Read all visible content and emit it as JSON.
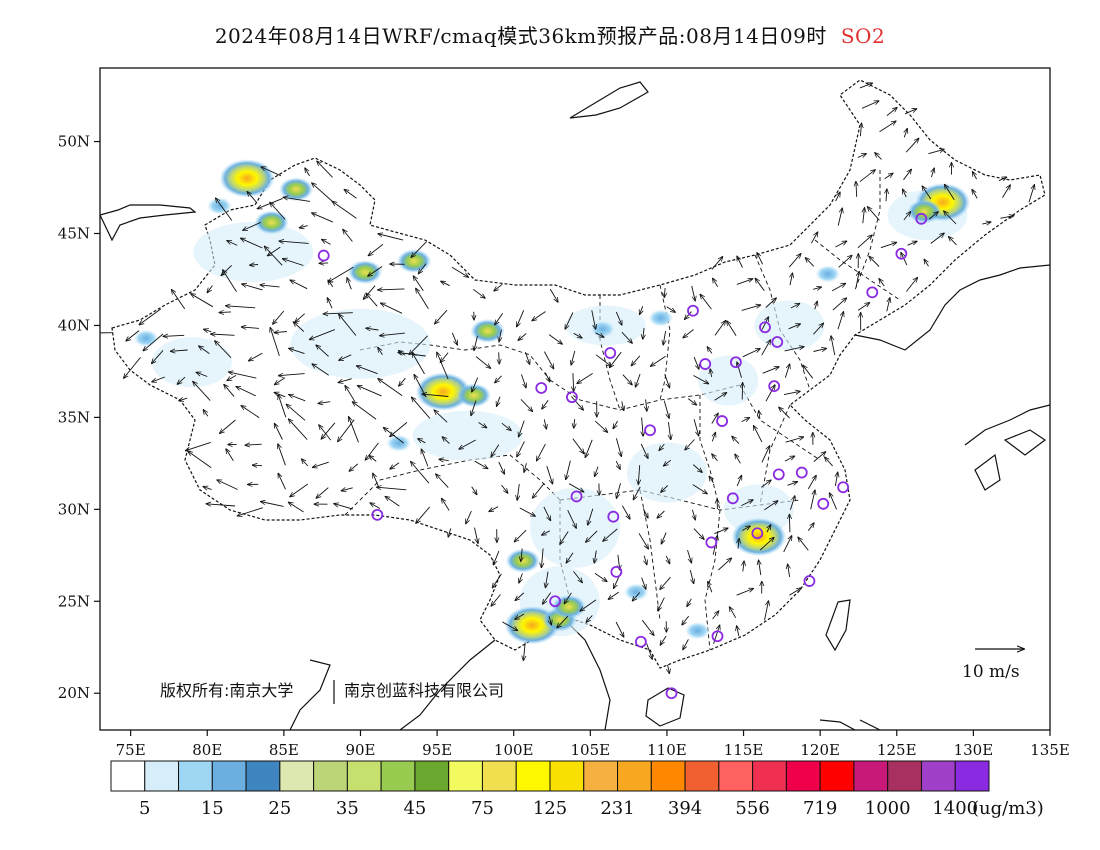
{
  "title": {
    "text": "2024年08月14日WRF/cmaq模式36km预报产品:08月14日09时",
    "pollutant": "SO2"
  },
  "axes": {
    "x_ticks": [
      "75E",
      "80E",
      "85E",
      "90E",
      "95E",
      "100E",
      "105E",
      "110E",
      "115E",
      "120E",
      "125E",
      "130E",
      "135E"
    ],
    "y_ticks": [
      "50N",
      "45N",
      "40N",
      "35N",
      "30N",
      "25N",
      "20N"
    ],
    "lon_range": [
      73,
      135
    ],
    "lat_range": [
      18,
      54
    ]
  },
  "legend": {
    "colors": [
      "#ffffff",
      "#d6eefa",
      "#9fd6f4",
      "#6aafe0",
      "#3f86c0",
      "#dde8b0",
      "#bcd578",
      "#c6e070",
      "#98cc50",
      "#6aa830",
      "#f2fa60",
      "#f0e050",
      "#fff700",
      "#f8e000",
      "#f5b040",
      "#f8a820",
      "#ff8800",
      "#f06030",
      "#ff6060",
      "#f03050",
      "#f0004a",
      "#ff0000",
      "#c81878",
      "#a83060",
      "#a040c8",
      "#8a2be2"
    ],
    "labels": [
      "5",
      "15",
      "25",
      "35",
      "45",
      "75",
      "125",
      "231",
      "394",
      "556",
      "719",
      "1000",
      "1400"
    ],
    "unit": "(ug/m3)"
  },
  "wind_reference": {
    "label": "10 m/s"
  },
  "copyright": {
    "part1": "版权所有:南京大学",
    "part2": "南京创蓝科技有限公司"
  },
  "stations": [
    [
      87.6,
      43.8
    ],
    [
      91.1,
      29.7
    ],
    [
      101.8,
      36.6
    ],
    [
      103.8,
      36.1
    ],
    [
      106.3,
      38.5
    ],
    [
      111.7,
      40.8
    ],
    [
      112.5,
      37.9
    ],
    [
      114.5,
      38.0
    ],
    [
      116.4,
      39.9
    ],
    [
      117.2,
      39.1
    ],
    [
      117.0,
      36.7
    ],
    [
      113.6,
      34.8
    ],
    [
      108.9,
      34.3
    ],
    [
      104.1,
      30.7
    ],
    [
      106.5,
      29.6
    ],
    [
      106.7,
      26.6
    ],
    [
      102.7,
      25.0
    ],
    [
      108.3,
      22.8
    ],
    [
      113.3,
      23.1
    ],
    [
      110.3,
      20.0
    ],
    [
      114.3,
      30.6
    ],
    [
      112.9,
      28.2
    ],
    [
      115.9,
      28.7
    ],
    [
      117.3,
      31.9
    ],
    [
      118.8,
      32.0
    ],
    [
      120.2,
      30.3
    ],
    [
      121.5,
      31.2
    ],
    [
      119.3,
      26.1
    ],
    [
      126.6,
      45.8
    ],
    [
      125.3,
      43.9
    ],
    [
      123.4,
      41.8
    ]
  ],
  "emission_hotspots": [
    {
      "lon": 95.4,
      "lat": 36.4,
      "level": "high"
    },
    {
      "lon": 97.4,
      "lat": 36.2,
      "level": "mid"
    },
    {
      "lon": 98.3,
      "lat": 39.7,
      "level": "mid"
    },
    {
      "lon": 84.2,
      "lat": 45.6,
      "level": "mid"
    },
    {
      "lon": 82.6,
      "lat": 48.0,
      "level": "high"
    },
    {
      "lon": 85.8,
      "lat": 47.4,
      "level": "mid"
    },
    {
      "lon": 90.3,
      "lat": 42.9,
      "level": "mid"
    },
    {
      "lon": 93.5,
      "lat": 43.5,
      "level": "mid"
    },
    {
      "lon": 76.0,
      "lat": 39.3,
      "level": "low"
    },
    {
      "lon": 80.8,
      "lat": 46.5,
      "level": "low"
    },
    {
      "lon": 101.2,
      "lat": 23.7,
      "level": "high"
    },
    {
      "lon": 103.0,
      "lat": 24.0,
      "level": "mid"
    },
    {
      "lon": 100.6,
      "lat": 27.2,
      "level": "mid"
    },
    {
      "lon": 103.6,
      "lat": 24.7,
      "level": "mid"
    },
    {
      "lon": 116.0,
      "lat": 28.5,
      "level": "high"
    },
    {
      "lon": 128.0,
      "lat": 46.7,
      "level": "high"
    },
    {
      "lon": 126.8,
      "lat": 46.2,
      "level": "mid"
    },
    {
      "lon": 120.5,
      "lat": 42.8,
      "level": "low"
    },
    {
      "lon": 92.5,
      "lat": 33.6,
      "level": "low"
    },
    {
      "lon": 108.0,
      "lat": 25.5,
      "level": "low"
    },
    {
      "lon": 112.0,
      "lat": 23.4,
      "level": "low"
    },
    {
      "lon": 109.6,
      "lat": 40.4,
      "level": "low"
    },
    {
      "lon": 105.8,
      "lat": 39.8,
      "level": "low"
    }
  ]
}
